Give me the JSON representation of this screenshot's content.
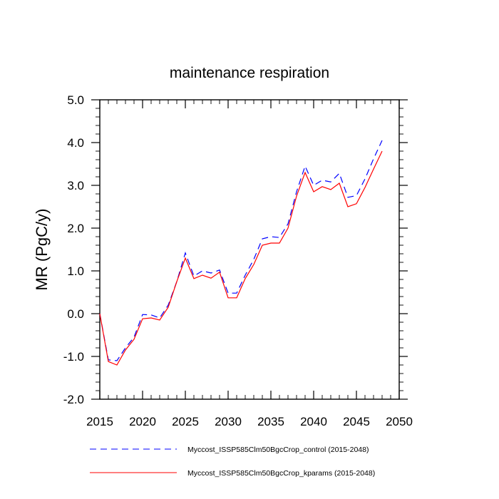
{
  "chart_data": {
    "type": "line",
    "title": "maintenance respiration",
    "ylabel": "MR  (PgC/y)",
    "xlabel": "",
    "xlim": [
      2015,
      2050
    ],
    "ylim": [
      -2.0,
      5.0
    ],
    "x_ticks": [
      2015,
      2020,
      2025,
      2030,
      2035,
      2040,
      2045,
      2050
    ],
    "x_tick_labels": [
      "2015",
      "2020",
      "2025",
      "2030",
      "2035",
      "2040",
      "2045",
      "2050"
    ],
    "y_ticks": [
      -2.0,
      -1.0,
      0.0,
      1.0,
      2.0,
      3.0,
      4.0,
      5.0
    ],
    "y_tick_labels": [
      "-2.0",
      "-1.0",
      "0.0",
      "1.0",
      "2.0",
      "3.0",
      "4.0",
      "5.0"
    ],
    "grid": false,
    "legend_position": "bottom",
    "x": [
      2015,
      2016,
      2017,
      2018,
      2019,
      2020,
      2021,
      2022,
      2023,
      2024,
      2025,
      2026,
      2027,
      2028,
      2029,
      2030,
      2031,
      2032,
      2033,
      2034,
      2035,
      2036,
      2037,
      2038,
      2039,
      2040,
      2041,
      2042,
      2043,
      2044,
      2045,
      2046,
      2047,
      2048
    ],
    "series": [
      {
        "name": "Myccost_ISSP585Clm50BgcCrop_control (2015-2048)",
        "color": "#0000ff",
        "dash": "dashed",
        "values": [
          0.0,
          -1.08,
          -1.1,
          -0.8,
          -0.55,
          -0.02,
          -0.03,
          -0.1,
          0.2,
          0.75,
          1.42,
          0.88,
          1.0,
          0.95,
          1.02,
          0.48,
          0.48,
          0.9,
          1.27,
          1.75,
          1.8,
          1.78,
          2.1,
          2.85,
          3.45,
          3.0,
          3.12,
          3.08,
          3.28,
          2.72,
          2.76,
          3.15,
          3.62,
          4.05
        ]
      },
      {
        "name": "Myccost_ISSP585Clm50BgcCrop_kparams (2015-2048)",
        "color": "#ff0000",
        "dash": "solid",
        "values": [
          0.0,
          -1.12,
          -1.2,
          -0.85,
          -0.6,
          -0.12,
          -0.1,
          -0.15,
          0.15,
          0.75,
          1.3,
          0.82,
          0.9,
          0.83,
          0.97,
          0.37,
          0.37,
          0.82,
          1.15,
          1.6,
          1.65,
          1.65,
          2.0,
          2.75,
          3.3,
          2.85,
          2.97,
          2.9,
          3.05,
          2.5,
          2.57,
          2.95,
          3.38,
          3.8
        ]
      }
    ]
  }
}
